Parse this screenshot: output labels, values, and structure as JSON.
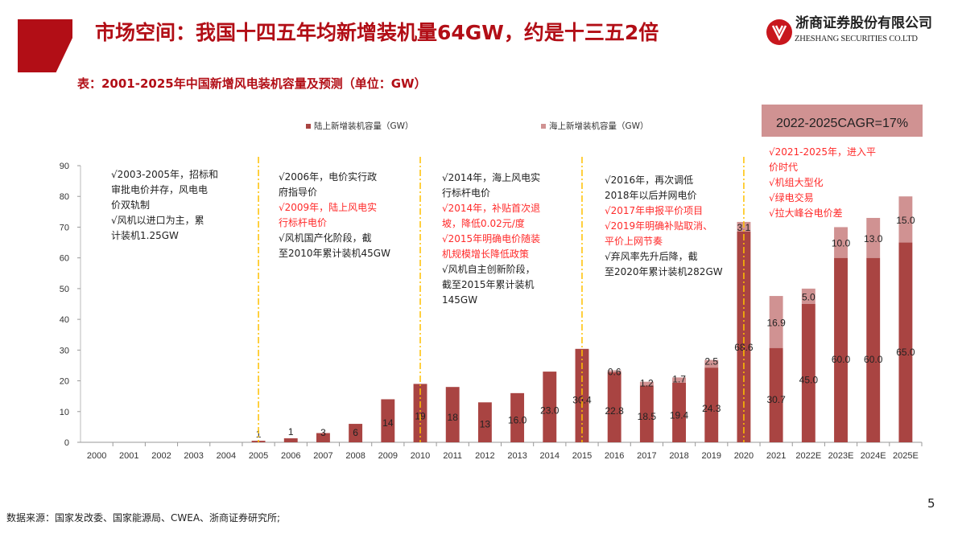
{
  "header": {
    "title": "市场空间：我国十四五年均新增装机量64GW，约是十三五2倍",
    "logo_cn": "浙商证券股份有限公司",
    "logo_en": "ZHESHANG SECURITIES CO.LTD",
    "brand_color": "#b20e16"
  },
  "subtitle": "表：2001-2025年中国新增风电装机容量及预测（单位：GW）",
  "cagr": "2022-2025CAGR=17%",
  "notes": [
    [
      {
        "t": "√2003-2005年，招标和",
        "red": false
      },
      {
        "t": "审批电价并存，风电电",
        "red": false
      },
      {
        "t": "价双轨制",
        "red": false
      },
      {
        "t": "√风机以进口为主，累",
        "red": false
      },
      {
        "t": "计装机1.25GW",
        "red": false
      }
    ],
    [
      {
        "t": "√2006年，电价实行政",
        "red": false
      },
      {
        "t": "府指导价",
        "red": false
      },
      {
        "t": "√2009年，陆上风电实",
        "red": true
      },
      {
        "t": "行标杆电价",
        "red": true
      },
      {
        "t": "√风机国产化阶段，截",
        "red": false
      },
      {
        "t": "至2010年累计装机45GW",
        "red": false
      }
    ],
    [
      {
        "t": "√2014年，海上风电实",
        "red": false
      },
      {
        "t": "行标杆电价",
        "red": false
      },
      {
        "t": "√2014年，补贴首次退",
        "red": true
      },
      {
        "t": "坡，降低0.02元/度",
        "red": true
      },
      {
        "t": "√2015年明确电价随装",
        "red": true
      },
      {
        "t": "机规模增长降低政策",
        "red": true
      },
      {
        "t": "√风机自主创新阶段，",
        "red": false
      },
      {
        "t": "截至2015年累计装机",
        "red": false
      },
      {
        "t": "145GW",
        "red": false
      }
    ],
    [
      {
        "t": "√2016年，再次调低",
        "red": false
      },
      {
        "t": "2018年以后并网电价",
        "red": false
      },
      {
        "t": "√2017年申报平价项目",
        "red": true
      },
      {
        "t": "√2019年明确补贴取消、",
        "red": true
      },
      {
        "t": "平价上网节奏",
        "red": true
      },
      {
        "t": "√弃风率先升后降，截",
        "red": false
      },
      {
        "t": "至2020年累计装机282GW",
        "red": false
      }
    ],
    [
      {
        "t": "√2021-2025年，进入平",
        "red": true
      },
      {
        "t": "价时代",
        "red": true
      },
      {
        "t": "√机组大型化",
        "red": true
      },
      {
        "t": "√绿电交易",
        "red": true
      },
      {
        "t": "√拉大峰谷电价差",
        "red": true
      }
    ]
  ],
  "footer": {
    "source": "数据来源：国家发改委、国家能源局、CWEA、浙商证券研究所;",
    "page": "5"
  },
  "chart_data": {
    "type": "bar",
    "stacked": true,
    "categories": [
      "2000",
      "2001",
      "2002",
      "2003",
      "2004",
      "2005",
      "2006",
      "2007",
      "2008",
      "2009",
      "2010",
      "2011",
      "2012",
      "2013",
      "2014",
      "2015",
      "2016",
      "2017",
      "2018",
      "2019",
      "2020",
      "2021",
      "2022E",
      "2023E",
      "2024E",
      "2025E"
    ],
    "series": [
      {
        "name": "陆上新增装机容量（GW）",
        "color": "#a94442",
        "values": [
          0,
          0,
          0,
          0,
          0,
          0.5,
          1.3,
          3,
          6,
          14,
          19,
          18,
          13,
          16.0,
          23.0,
          30.4,
          22.8,
          18.5,
          19.4,
          24.3,
          68.6,
          30.7,
          45.0,
          60.0,
          60.0,
          65.0
        ],
        "labels": [
          "",
          "",
          "",
          "",
          "",
          "1",
          "1",
          "3",
          "6",
          "14",
          "19",
          "18",
          "13",
          "16.0",
          "23.0",
          "30.4",
          "22.8",
          "18.5",
          "19.4",
          "24.3",
          "68.6",
          "30.7",
          "45.0",
          "60.0",
          "60.0",
          "65.0"
        ]
      },
      {
        "name": "海上新增装机容量（GW）",
        "color": "#d09292",
        "values": [
          0,
          0,
          0,
          0,
          0,
          0,
          0,
          0,
          0,
          0,
          0,
          0,
          0,
          0,
          0,
          0,
          0.6,
          1.2,
          1.7,
          2.5,
          3.1,
          16.9,
          5.0,
          10.0,
          13.0,
          15.0
        ],
        "labels": [
          "",
          "",
          "",
          "",
          "",
          "",
          "",
          "",
          "",
          "",
          "",
          "",
          "",
          "",
          "",
          "",
          "0.6",
          "1.2",
          "1.7",
          "2.5",
          "3.1",
          "16.9",
          "5.0",
          "10.0",
          "13.0",
          "15.0"
        ]
      }
    ],
    "ylim": [
      0,
      90
    ],
    "yticks": [
      0,
      10,
      20,
      30,
      40,
      50,
      60,
      70,
      80,
      90
    ],
    "grid": false,
    "legend": "top",
    "period_markers": [
      "2005",
      "2010",
      "2015",
      "2020"
    ],
    "marker_color": "#ffc000"
  }
}
